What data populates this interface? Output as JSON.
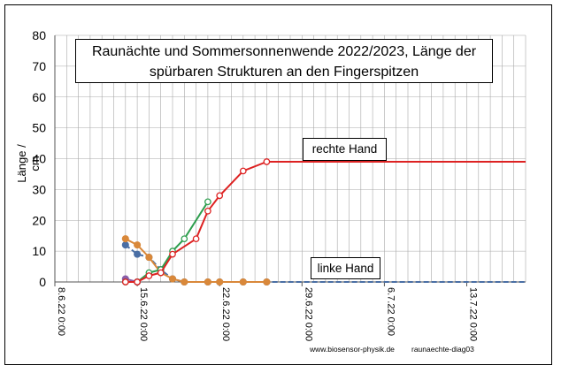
{
  "chart_data": {
    "type": "line",
    "title_lines": [
      "Raunächte  und Sommersonnenwende 2022/2023, Länge der",
      "spürbaren Strukturen an den Fingerspitzen"
    ],
    "xlabel": "",
    "ylabel": "Länge / cm",
    "ylim": [
      0,
      80
    ],
    "yticks": [
      0,
      10,
      20,
      30,
      40,
      50,
      60,
      70,
      80
    ],
    "xlim": [
      "2022-06-08",
      "2022-07-18"
    ],
    "xtick_labels": [
      "8.6.22 0:00",
      "15.6.22 0:00",
      "22.6.22 0:00",
      "29.6.22 0:00",
      "6.7.22 0:00",
      "13.7.22 0:00"
    ],
    "xtick_dates": [
      "2022-06-08",
      "2022-06-15",
      "2022-06-22",
      "2022-06-29",
      "2022-07-06",
      "2022-07-13"
    ],
    "grid": true,
    "annotations": [
      "rechte Hand",
      "linke Hand"
    ],
    "series": [
      {
        "color": "#dd2222",
        "marker": "circle-open",
        "x": [
          "2022-06-14",
          "2022-06-15",
          "2022-06-16",
          "2022-06-17",
          "2022-06-18",
          "2022-06-20",
          "2022-06-21",
          "2022-06-22",
          "2022-06-24",
          "2022-06-26",
          "2022-07-18"
        ],
        "y": [
          0,
          0,
          2,
          3,
          9,
          14,
          23,
          28,
          36,
          39,
          39
        ]
      },
      {
        "color": "#2e9e4e",
        "marker": "circle-open",
        "x": [
          "2022-06-14",
          "2022-06-15",
          "2022-06-16",
          "2022-06-17",
          "2022-06-18",
          "2022-06-19",
          "2022-06-21"
        ],
        "y": [
          0,
          0,
          3,
          4,
          10,
          14,
          26
        ]
      },
      {
        "color": "#d9883a",
        "marker": "circle-filled",
        "x": [
          "2022-06-14",
          "2022-06-15",
          "2022-06-16",
          "2022-06-17",
          "2022-06-18",
          "2022-06-19",
          "2022-06-21",
          "2022-06-22",
          "2022-06-24",
          "2022-06-26"
        ],
        "y": [
          14,
          12,
          8,
          3,
          1,
          0,
          0,
          0,
          0,
          0
        ]
      },
      {
        "color": "#4a6fa5",
        "marker": "circle-filled",
        "x": [
          "2022-06-14",
          "2022-06-15",
          "2022-06-16",
          "2022-06-17",
          "2022-06-18",
          "2022-06-19",
          "2022-06-21",
          "2022-06-22",
          "2022-06-24",
          "2022-06-26",
          "2022-07-18"
        ],
        "y": [
          12,
          9,
          8,
          4,
          1,
          0,
          0,
          0,
          0,
          0,
          0
        ]
      },
      {
        "color": "#8a5ea8",
        "marker": "circle-filled",
        "x": [
          "2022-06-14",
          "2022-06-15"
        ],
        "y": [
          1,
          0
        ]
      }
    ]
  },
  "footer": {
    "site": "www.biosensor-physik.de",
    "diagram_id": "raunaechte-diag03"
  }
}
